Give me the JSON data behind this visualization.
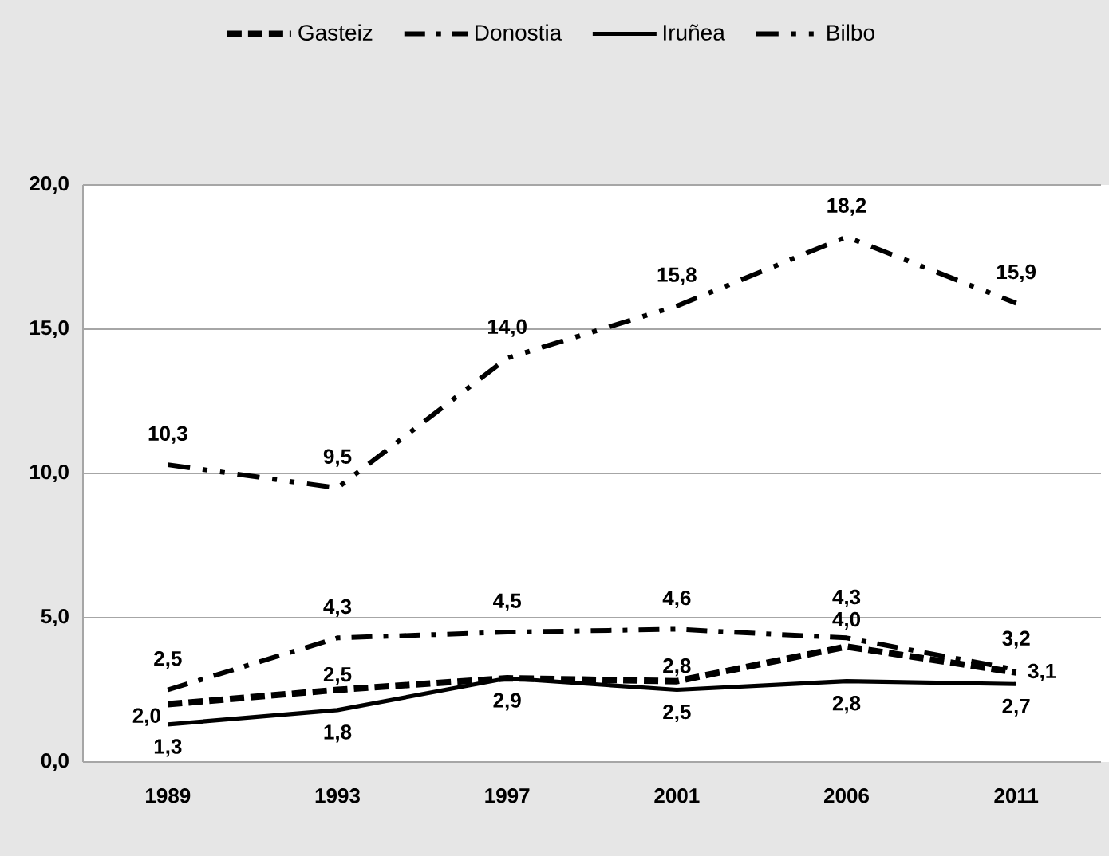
{
  "chart_data": {
    "type": "line",
    "categories": [
      "1989",
      "1993",
      "1997",
      "2001",
      "2006",
      "2011"
    ],
    "series": [
      {
        "name": "Gasteiz",
        "color": "#000000",
        "line_style": "dashed",
        "values": [
          2.0,
          2.5,
          2.9,
          2.8,
          4.0,
          3.1
        ],
        "value_labels": [
          "2,0",
          "2,5",
          null,
          "2,8",
          "4,0",
          "3,1"
        ]
      },
      {
        "name": "Donostia",
        "color": "#000000",
        "line_style": "dashdot",
        "values": [
          2.5,
          4.3,
          4.5,
          4.6,
          4.3,
          3.2
        ],
        "value_labels": [
          "2,5",
          "4,3",
          "4,5",
          "4,6",
          "4,3",
          "3,2"
        ]
      },
      {
        "name": "Iruñea",
        "color": "#000000",
        "line_style": "solid",
        "values": [
          1.3,
          1.8,
          2.9,
          2.5,
          2.8,
          2.7
        ],
        "value_labels": [
          "1,3",
          "1,8",
          "2,9",
          "2,5",
          "2,8",
          "2,7"
        ]
      },
      {
        "name": "Bilbo",
        "color": "#000000",
        "line_style": "dashdotdot",
        "values": [
          10.3,
          9.5,
          14.0,
          15.8,
          18.2,
          15.9
        ],
        "value_labels": [
          "10,3",
          "9,5",
          "14,0",
          "15,8",
          "18,2",
          "15,9"
        ]
      }
    ],
    "ylim": [
      0,
      20
    ],
    "yticks": [
      {
        "value": 0,
        "label": "0,0"
      },
      {
        "value": 5,
        "label": "5,0"
      },
      {
        "value": 10,
        "label": "10,0"
      },
      {
        "value": 15,
        "label": "15,0"
      },
      {
        "value": 20,
        "label": "20,0"
      }
    ],
    "grid": "y",
    "legend": "top"
  }
}
